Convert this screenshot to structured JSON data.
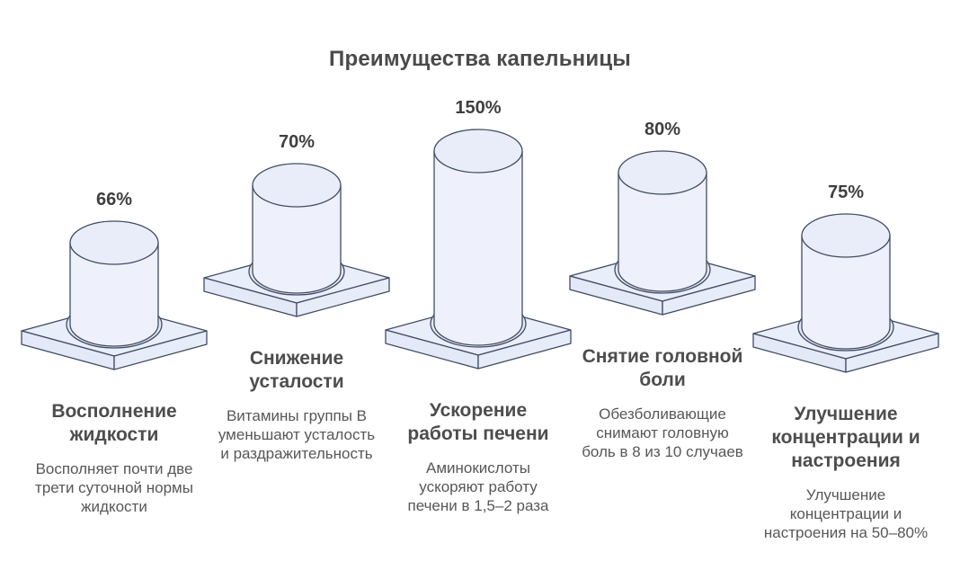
{
  "title": "Преимущества капельницы",
  "colors": {
    "background": "#ffffff",
    "stroke": "#414c63",
    "cylinder_side": "#eef1fb",
    "cylinder_top": "#e8edf9",
    "platform_top": "#e9eefb",
    "platform_left": "#e3e9f7",
    "platform_right": "#e7ecf9",
    "shadow": "#e2e8f6",
    "title_text": "#4a4a4a",
    "heading_text": "#4d4d4d",
    "value_text": "#3f3f3f",
    "description_text": "#575757"
  },
  "chart_data": {
    "type": "bar",
    "style": "isometric-cylinders-on-pedestals",
    "title": "Преимущества капельницы",
    "unit": "%",
    "categories": [
      "Восполнение жидкости",
      "Снижение усталости",
      "Ускорение работы печени",
      "Снятие головной боли",
      "Улучшение концентрации и настроения"
    ],
    "values": [
      66,
      70,
      150,
      80,
      75
    ],
    "value_labels": [
      "66%",
      "70%",
      "150%",
      "80%",
      "75%"
    ],
    "descriptions": [
      "Восполняет почти две трети суточной нормы жидкости",
      "Витамины группы В уменьшают усталость и раздражительность",
      "Аминокислоты ускоряют работу печени в 1,5–2 раза",
      "Обезболивающие снимают головную боль в 8 из 10 случаев",
      "Улучшение концентрации и настроения на 50–80%"
    ],
    "axes": "none",
    "grid": false,
    "legend": "none"
  },
  "columns": [
    {
      "value_label": "66%",
      "heading": "Восполнение\nжидкости",
      "description": "Восполняет почти две\nтрети суточной нормы\nжидкости"
    },
    {
      "value_label": "70%",
      "heading": "Снижение\nусталости",
      "description": "Витамины группы В\nуменьшают усталость\nи раздражительность"
    },
    {
      "value_label": "150%",
      "heading": "Ускорение\nработы печени",
      "description": "Аминокислоты\nускоряют работу\nпечени в 1,5–2 раза"
    },
    {
      "value_label": "80%",
      "heading": "Снятие головной\nболи",
      "description": "Обезболивающие\nснимают головную\nболь в 8 из 10 случаев"
    },
    {
      "value_label": "75%",
      "heading": "Улучшение\nконцентрации и\nнастроения",
      "description": "Улучшение\nконцентрации и\nнастроения на 50–80%"
    }
  ]
}
